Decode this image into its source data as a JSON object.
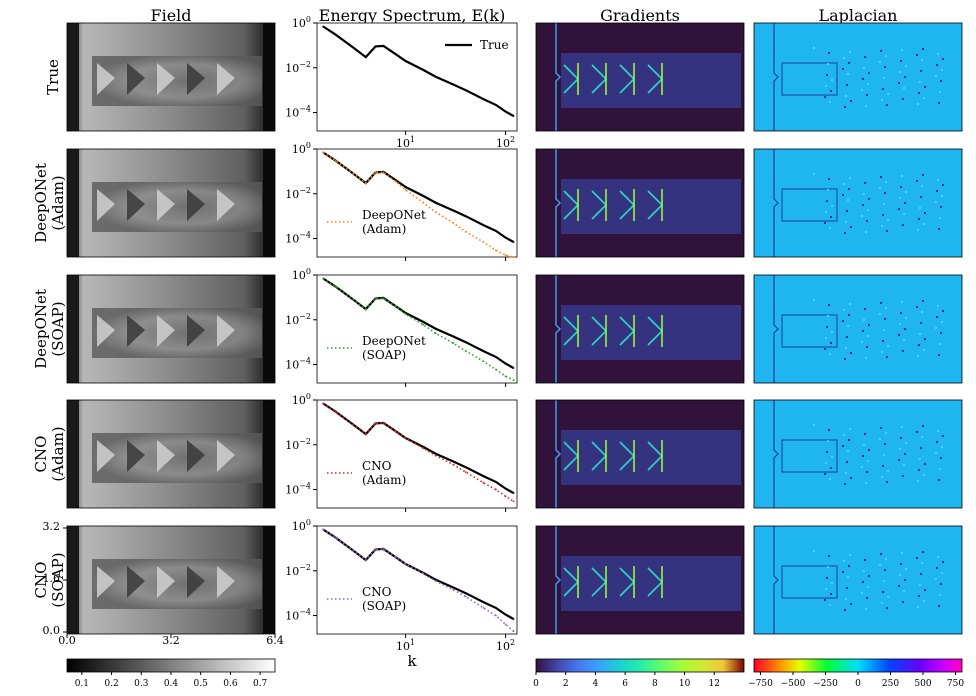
{
  "column_titles": [
    "Field",
    "Energy Spectrum, E(k)",
    "Gradients",
    "Laplacian"
  ],
  "row_labels": [
    [
      "True"
    ],
    [
      "DeepONet",
      "(Adam)"
    ],
    [
      "DeepONet",
      "(SOAP)"
    ],
    [
      "CNO",
      "(Adam)"
    ],
    [
      "CNO",
      "(SOAP)"
    ]
  ],
  "colors": {
    "true": "#000000",
    "deeponet_adam": "#ff7f0e",
    "deeponet_soap": "#2ca02c",
    "cno_adam": "#d62728",
    "cno_soap": "#9467bd",
    "gradients_bg": "#30123b",
    "laplacian_bg": "#1fb5f0"
  },
  "icons": {
    "field_colormap": "gray",
    "gradients_colormap": "turbo",
    "laplacian_colormap": "gist-rainbow-diverging"
  },
  "field_axes": {
    "x_ticks": [
      "0.0",
      "3.2",
      "6.4"
    ],
    "y_ticks": [
      "3.2",
      "1.6",
      "0.0"
    ]
  },
  "colorbars": {
    "field": {
      "ticks": [
        "0.1",
        "0.2",
        "0.3",
        "0.4",
        "0.5",
        "0.6",
        "0.7"
      ],
      "min": 0.05,
      "max": 0.75
    },
    "gradients": {
      "ticks": [
        "0",
        "2",
        "4",
        "6",
        "8",
        "10",
        "12"
      ],
      "min": 0,
      "max": 14
    },
    "laplacian": {
      "ticks": [
        "−750",
        "−500",
        "−250",
        "0",
        "250",
        "500",
        "750"
      ],
      "min": -800,
      "max": 800
    }
  },
  "chart_data": [
    {
      "type": "line",
      "title": "Energy Spectrum, E(k)",
      "xlabel": "k",
      "ylabel": "",
      "xscale": "log",
      "yscale": "log",
      "xlim": [
        1.3,
        130
      ],
      "ylim": [
        1.5e-05,
        1
      ],
      "y_ticks": [
        "10^0",
        "10^-2",
        "10^-4"
      ],
      "x_ticks": [
        "10^1",
        "10^2"
      ],
      "legend_position": "top-right",
      "series": [
        {
          "name": "True",
          "style": "solid",
          "x": [
            1.5,
            2,
            3,
            4,
            5,
            6,
            8,
            10,
            15,
            20,
            30,
            40,
            60,
            80,
            100,
            120
          ],
          "y": [
            0.7,
            0.3,
            0.08,
            0.03,
            0.09,
            0.095,
            0.04,
            0.02,
            0.008,
            0.004,
            0.0018,
            0.001,
            0.0004,
            0.00022,
            0.00011,
            7e-05
          ]
        }
      ]
    },
    {
      "type": "line",
      "xscale": "log",
      "yscale": "log",
      "xlim": [
        1.3,
        130
      ],
      "ylim": [
        1.5e-05,
        1
      ],
      "y_ticks": [
        "10^0",
        "10^-2",
        "10^-4"
      ],
      "legend_position": "bottom-left",
      "series": [
        {
          "name": "",
          "style": "solid",
          "x": [
            1.5,
            2,
            3,
            4,
            5,
            6,
            8,
            10,
            15,
            20,
            30,
            40,
            60,
            80,
            100,
            120
          ],
          "y": [
            0.7,
            0.3,
            0.08,
            0.03,
            0.09,
            0.095,
            0.04,
            0.02,
            0.008,
            0.004,
            0.0018,
            0.001,
            0.0004,
            0.00022,
            0.00011,
            7e-05
          ]
        },
        {
          "name": "DeepONet (Adam)",
          "style": "dotted",
          "x": [
            1.5,
            2,
            3,
            4,
            5,
            6,
            8,
            10,
            15,
            20,
            30,
            40,
            60,
            80,
            100,
            120
          ],
          "y": [
            0.7,
            0.3,
            0.08,
            0.03,
            0.09,
            0.09,
            0.035,
            0.015,
            0.004,
            0.0015,
            0.0005,
            0.0002,
            7e-05,
            3e-05,
            1.8e-05,
            1.5e-05
          ]
        }
      ]
    },
    {
      "type": "line",
      "xscale": "log",
      "yscale": "log",
      "xlim": [
        1.3,
        130
      ],
      "ylim": [
        1.5e-05,
        1
      ],
      "y_ticks": [
        "10^0",
        "10^-2",
        "10^-4"
      ],
      "legend_position": "bottom-left",
      "series": [
        {
          "name": "",
          "style": "solid",
          "x": [
            1.5,
            2,
            3,
            4,
            5,
            6,
            8,
            10,
            15,
            20,
            30,
            40,
            60,
            80,
            100,
            120
          ],
          "y": [
            0.7,
            0.3,
            0.08,
            0.03,
            0.09,
            0.095,
            0.04,
            0.02,
            0.008,
            0.004,
            0.0018,
            0.001,
            0.0004,
            0.00022,
            0.00011,
            7e-05
          ]
        },
        {
          "name": "DeepONet (SOAP)",
          "style": "dotted",
          "x": [
            1.5,
            2,
            3,
            4,
            5,
            6,
            8,
            10,
            15,
            20,
            30,
            40,
            60,
            80,
            100,
            120
          ],
          "y": [
            0.7,
            0.3,
            0.08,
            0.03,
            0.09,
            0.09,
            0.04,
            0.018,
            0.006,
            0.0025,
            0.0009,
            0.0004,
            0.00014,
            6e-05,
            3e-05,
            2e-05
          ]
        }
      ]
    },
    {
      "type": "line",
      "xscale": "log",
      "yscale": "log",
      "xlim": [
        1.3,
        130
      ],
      "ylim": [
        1.5e-05,
        1
      ],
      "y_ticks": [
        "10^0",
        "10^-2",
        "10^-4"
      ],
      "legend_position": "bottom-left",
      "series": [
        {
          "name": "",
          "style": "solid",
          "x": [
            1.5,
            2,
            3,
            4,
            5,
            6,
            8,
            10,
            15,
            20,
            30,
            40,
            60,
            80,
            100,
            120
          ],
          "y": [
            0.7,
            0.3,
            0.08,
            0.03,
            0.09,
            0.095,
            0.04,
            0.02,
            0.008,
            0.004,
            0.0018,
            0.001,
            0.0004,
            0.00022,
            0.00011,
            7e-05
          ]
        },
        {
          "name": "CNO (Adam)",
          "style": "dotted",
          "x": [
            1.5,
            2,
            3,
            4,
            5,
            6,
            8,
            10,
            15,
            20,
            30,
            40,
            60,
            80,
            100,
            120
          ],
          "y": [
            0.7,
            0.3,
            0.08,
            0.03,
            0.09,
            0.095,
            0.04,
            0.02,
            0.007,
            0.0033,
            0.0013,
            0.0006,
            0.0002,
            0.0001,
            5e-05,
            3e-05
          ]
        }
      ]
    },
    {
      "type": "line",
      "xscale": "log",
      "yscale": "log",
      "xlim": [
        1.3,
        130
      ],
      "ylim": [
        1.5e-05,
        1
      ],
      "y_ticks": [
        "10^0",
        "10^-2",
        "10^-4"
      ],
      "x_ticks": [
        "10^1",
        "10^2"
      ],
      "xlabel": "k",
      "legend_position": "bottom-left",
      "series": [
        {
          "name": "",
          "style": "solid",
          "x": [
            1.5,
            2,
            3,
            4,
            5,
            6,
            8,
            10,
            15,
            20,
            30,
            40,
            60,
            80,
            100,
            120
          ],
          "y": [
            0.7,
            0.3,
            0.08,
            0.03,
            0.09,
            0.095,
            0.04,
            0.02,
            0.008,
            0.004,
            0.0018,
            0.001,
            0.0004,
            0.00022,
            0.00011,
            7e-05
          ]
        },
        {
          "name": "CNO (SOAP)",
          "style": "dotted",
          "x": [
            1.5,
            2,
            3,
            4,
            5,
            6,
            8,
            10,
            15,
            20,
            30,
            40,
            60,
            80,
            100,
            120
          ],
          "y": [
            0.7,
            0.3,
            0.08,
            0.03,
            0.09,
            0.095,
            0.04,
            0.02,
            0.0075,
            0.0035,
            0.0014,
            0.0007,
            0.00022,
            0.0001,
            4e-05,
            2e-05
          ]
        }
      ]
    }
  ]
}
